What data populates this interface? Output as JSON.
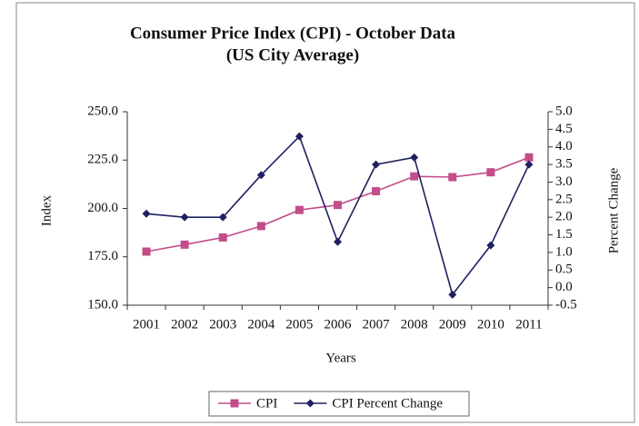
{
  "chart_data": {
    "type": "line",
    "title": "Consumer Price Index (CPI) - October Data",
    "subtitle": "(US City Average)",
    "x_label": "Years",
    "y_label": "Index",
    "y2_label": "Percent Change",
    "categories": [
      "2001",
      "2002",
      "2003",
      "2004",
      "2005",
      "2006",
      "2007",
      "2008",
      "2009",
      "2010",
      "2011"
    ],
    "series": [
      {
        "name": "CPI",
        "color": "#c24d8a",
        "marker": "square",
        "values": [
          177.7,
          181.3,
          185.0,
          190.9,
          199.2,
          201.8,
          208.9,
          216.6,
          216.2,
          218.7,
          226.4
        ]
      },
      {
        "name": "CPI Percent Change",
        "color": "#1f2160",
        "marker": "diamond",
        "axis": "y2",
        "values": [
          2.1,
          2.0,
          2.0,
          3.2,
          4.3,
          1.3,
          3.5,
          3.7,
          -0.2,
          1.2,
          3.5
        ]
      }
    ],
    "ylim": [
      150,
      250
    ],
    "yticks": [
      {
        "value": 150,
        "label": "150.0"
      },
      {
        "value": 175,
        "label": "175.0"
      },
      {
        "value": 200,
        "label": "200.0"
      },
      {
        "value": 225,
        "label": "225.0"
      },
      {
        "value": 250,
        "label": "250.0"
      }
    ],
    "y2lim": [
      -0.5,
      5
    ],
    "y2ticks": [
      {
        "value": -0.5,
        "label": "-0.5"
      },
      {
        "value": 0,
        "label": "0.0"
      },
      {
        "value": 0.5,
        "label": "0.5"
      },
      {
        "value": 1,
        "label": "1.0"
      },
      {
        "value": 1.5,
        "label": "1.5"
      },
      {
        "value": 2,
        "label": "2.0"
      },
      {
        "value": 2.5,
        "label": "2.5"
      },
      {
        "value": 3,
        "label": "3.0"
      },
      {
        "value": 3.5,
        "label": "3.5"
      },
      {
        "value": 4,
        "label": "4.0"
      },
      {
        "value": 4.5,
        "label": "4.5"
      },
      {
        "value": 5,
        "label": "5.0"
      }
    ],
    "legend": "bottom"
  }
}
